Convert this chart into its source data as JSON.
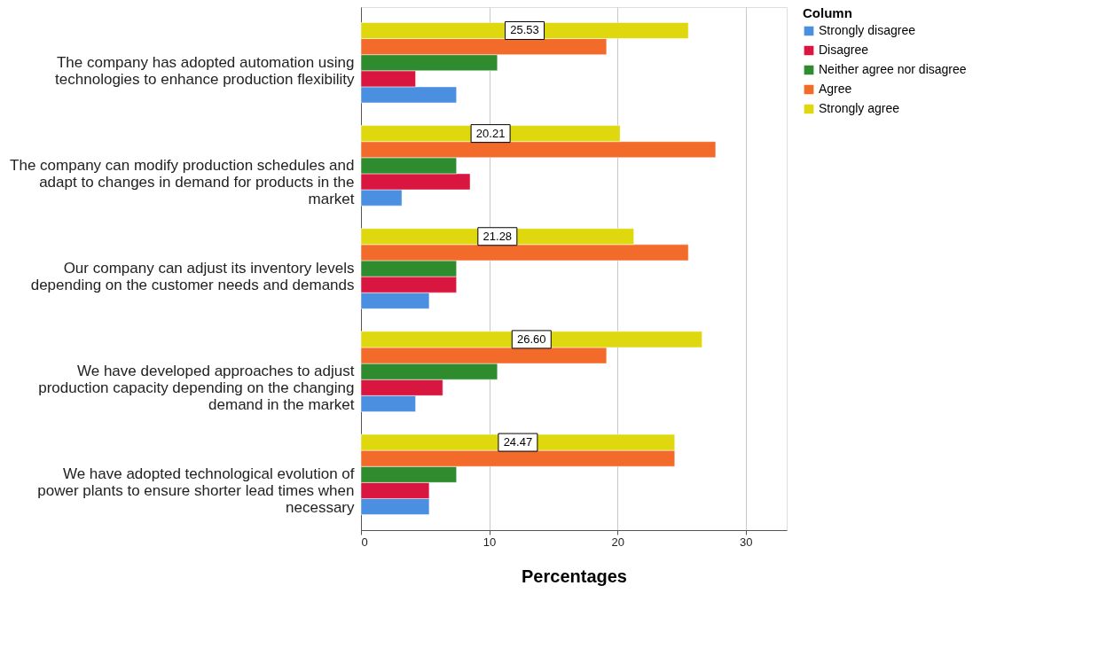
{
  "chart_data": {
    "type": "bar",
    "orientation": "horizontal",
    "xlabel": "Percentages",
    "legend_title": "Column",
    "legend": "top right",
    "grid": "x",
    "categories": [
      "The company has adopted automation using technologies to enhance production flexibility",
      "The company can modify production schedules and adapt to changes in demand for products in the market",
      "Our company can adjust its inventory levels depending on the customer needs and demands",
      "We have developed approaches to adjust production capacity depending on the changing demand in the market",
      "We have adopted technological evolution of power plants to ensure shorter lead times when necessary"
    ],
    "xlim": [
      0,
      33.2
    ],
    "xticks": [
      0,
      10,
      20,
      30
    ],
    "series": [
      {
        "name": "Strongly disagree",
        "color": "#4a8fe0",
        "values": [
          7.45,
          3.19,
          5.32,
          4.26,
          5.32
        ]
      },
      {
        "name": "Disagree",
        "color": "#d9163f",
        "values": [
          4.26,
          8.51,
          7.45,
          6.38,
          5.32
        ]
      },
      {
        "name": "Neither agree nor disagree",
        "color": "#2e8b2e",
        "values": [
          10.64,
          7.45,
          7.45,
          10.64,
          7.45
        ]
      },
      {
        "name": "Agree",
        "color": "#f26b2a",
        "values": [
          19.15,
          27.66,
          25.53,
          19.15,
          24.47
        ]
      },
      {
        "name": "Strongly agree",
        "color": "#e0d80e",
        "values": [
          25.53,
          20.21,
          21.28,
          26.6,
          24.47
        ],
        "value_labels": [
          "25.53",
          "20.21",
          "21.28",
          "26.60",
          "24.47"
        ]
      }
    ]
  }
}
